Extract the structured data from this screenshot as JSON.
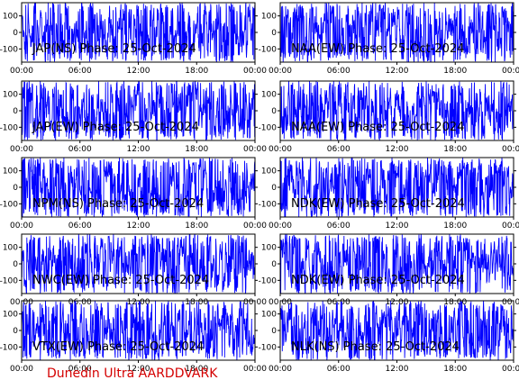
{
  "page": {
    "credit": "Dunedin Ultra AARDDVARK",
    "credit_color": "#d40000",
    "trace_color": "#0000ff",
    "frame_color": "#000000"
  },
  "chart_data": [
    {
      "type": "line",
      "title": "JAP(NS) Phase: 25-Oct-2024",
      "x_ticks": [
        "00:00",
        "06:00",
        "12:00",
        "18:00",
        "00:00"
      ],
      "y_ticks": [
        "100",
        "0",
        "-100"
      ],
      "xlim": [
        0,
        24
      ],
      "ylim": [
        -180,
        180
      ],
      "series": [
        {
          "values": "dense wrapped phase trace from -180 to 180 degrees across the day"
        }
      ]
    },
    {
      "type": "line",
      "title": "NAA(EW) Phase: 25-Oct-2024",
      "x_ticks": [
        "00:00",
        "06:00",
        "12:00",
        "18:00",
        "00:00"
      ],
      "y_ticks": [
        "100",
        "0",
        "-100"
      ],
      "xlim": [
        0,
        24
      ],
      "ylim": [
        -180,
        180
      ],
      "series": [
        {
          "values": "dense wrapped phase trace from -180 to 180 degrees across the day"
        }
      ]
    },
    {
      "type": "line",
      "title": "JAP(EW) Phase: 25-Oct-2024",
      "x_ticks": [
        "00:00",
        "06:00",
        "12:00",
        "18:00",
        "00:00"
      ],
      "y_ticks": [
        "100",
        "0",
        "-100"
      ],
      "xlim": [
        0,
        24
      ],
      "ylim": [
        -180,
        180
      ],
      "series": [
        {
          "values": "dense wrapped phase trace from -180 to 180 degrees across the day"
        }
      ]
    },
    {
      "type": "line",
      "title": "NAA(EW) Phase: 25-Oct-2024",
      "x_ticks": [
        "00:00",
        "06:00",
        "12:00",
        "18:00",
        "00:00"
      ],
      "y_ticks": [
        "100",
        "0",
        "-100"
      ],
      "xlim": [
        0,
        24
      ],
      "ylim": [
        -180,
        180
      ],
      "series": [
        {
          "values": "dense wrapped phase trace from -180 to 180 degrees across the day"
        }
      ]
    },
    {
      "type": "line",
      "title": "NPM(NS) Phase: 25-Oct-2024",
      "x_ticks": [
        "00:00",
        "06:00",
        "12:00",
        "18:00",
        "00:00"
      ],
      "y_ticks": [
        "100",
        "0",
        "-100"
      ],
      "xlim": [
        0,
        24
      ],
      "ylim": [
        -180,
        180
      ],
      "series": [
        {
          "values": "dense wrapped phase trace from -180 to 180 degrees across the day"
        }
      ]
    },
    {
      "type": "line",
      "title": "NDK(EW) Phase: 25-Oct-2024",
      "x_ticks": [
        "00:00",
        "06:00",
        "12:00",
        "18:00",
        "00:00"
      ],
      "y_ticks": [
        "100",
        "0",
        "-100"
      ],
      "xlim": [
        0,
        24
      ],
      "ylim": [
        -180,
        180
      ],
      "series": [
        {
          "values": "dense wrapped phase trace from -180 to 180 degrees across the day"
        }
      ]
    },
    {
      "type": "line",
      "title": "NWC(EW) Phase: 25-Oct-2024",
      "x_ticks": [
        "00:00",
        "06:00",
        "12:00",
        "18:00",
        "00:00"
      ],
      "y_ticks": [
        "100",
        "0",
        "-100"
      ],
      "xlim": [
        0,
        24
      ],
      "ylim": [
        -180,
        180
      ],
      "series": [
        {
          "values": "dense wrapped phase trace from -180 to 180 degrees across the day"
        }
      ]
    },
    {
      "type": "line",
      "title": "NDK(EW) Phase: 25-Oct-2024",
      "x_ticks": [
        "00:00",
        "06:00",
        "12:00",
        "18:00",
        "00:00"
      ],
      "y_ticks": [
        "100",
        "0",
        "-100"
      ],
      "xlim": [
        0,
        24
      ],
      "ylim": [
        -180,
        180
      ],
      "series": [
        {
          "values": "dense wrapped phase trace from -180 to 180 degrees across the day"
        }
      ]
    },
    {
      "type": "line",
      "title": "VTX(EW) Phase: 25-Oct-2024",
      "x_ticks": [
        "00:00",
        "06:00",
        "12:00",
        "18:00",
        "00:00"
      ],
      "y_ticks": [
        "100",
        "0",
        "-100"
      ],
      "xlim": [
        0,
        24
      ],
      "ylim": [
        -180,
        180
      ],
      "series": [
        {
          "values": "dense wrapped phase trace from -180 to 180 degrees across the day"
        }
      ]
    },
    {
      "type": "line",
      "title": "NLK(NS) Phase: 25-Oct-2024",
      "x_ticks": [
        "00:00",
        "06:00",
        "12:00",
        "18:00",
        "00:00"
      ],
      "y_ticks": [
        "100",
        "0",
        "-100"
      ],
      "xlim": [
        0,
        24
      ],
      "ylim": [
        -180,
        180
      ],
      "series": [
        {
          "values": "dense wrapped phase trace from -180 to 180 degrees across the day"
        }
      ]
    }
  ]
}
